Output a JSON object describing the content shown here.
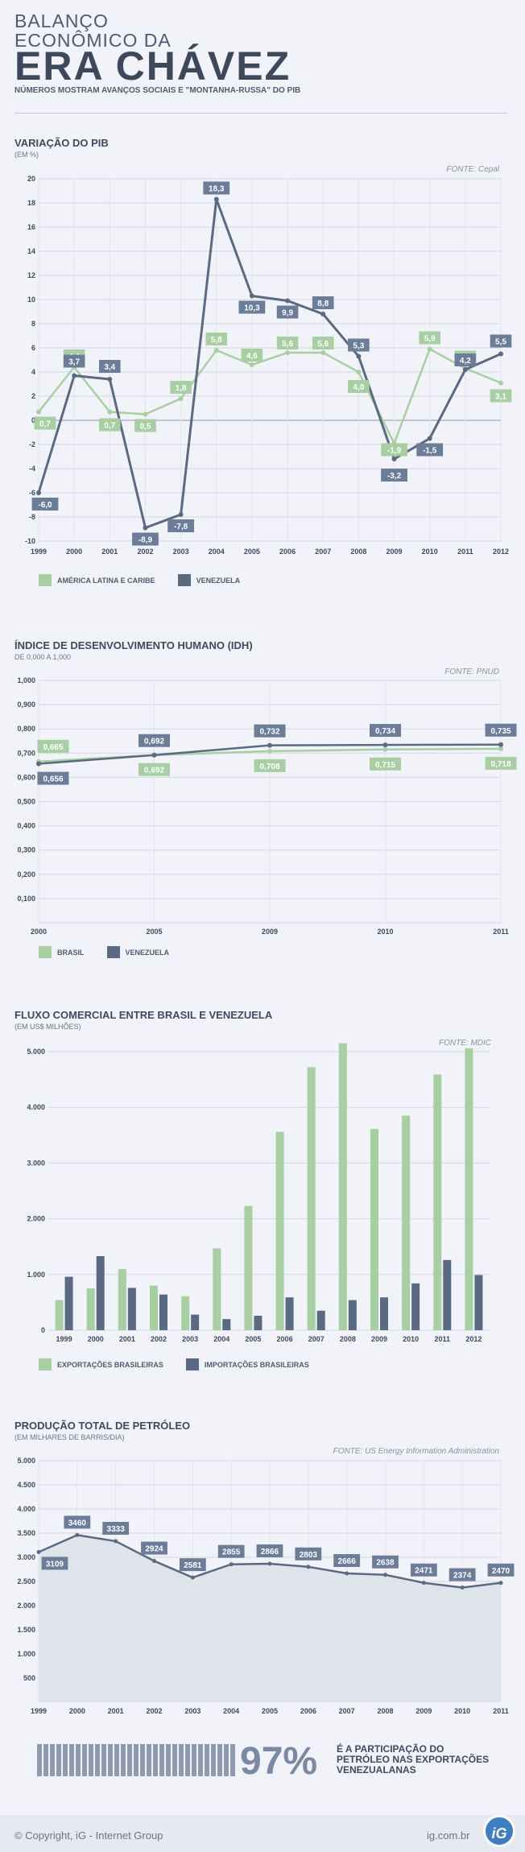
{
  "header": {
    "line1a": "BALANÇO",
    "line1b": "ECONÔMICO DA",
    "line2": "ERA CHÁVEZ",
    "subtitle": "NÚMEROS MOSTRAM AVANÇOS SOCIAIS E \"MONTANHA-RUSSA\" DO PIB"
  },
  "pib": {
    "title": "VARIAÇÃO DO PIB",
    "unit": "(EM %)",
    "source": "FONTE: Cepal"
  },
  "idh": {
    "title": "ÍNDICE DE DESENVOLVIMENTO HUMANO (IDH)",
    "unit": "DE 0,000 A 1,000",
    "source": "FONTE: PNUD"
  },
  "trade": {
    "title": "FLUXO COMERCIAL ENTRE BRASIL E VENEZUELA",
    "unit": "(EM US$ MILHÕES)",
    "source": "FONTE: MDIC"
  },
  "oil": {
    "title": "PRODUÇÃO TOTAL DE PETRÓLEO",
    "unit": "(EM MILHARES DE BARRIS/DIA)",
    "source": "FONTE: US Energy Information Administration"
  },
  "bottom": {
    "pct": "97%",
    "text1": "É A PARTICIPAÇÃO DO",
    "text2": "PETRÓLEO NAS EXPORTAÇÕES",
    "text3": "VENEZUALANAS"
  },
  "footer": {
    "copyright": "© Copyright, iG - Internet Group",
    "site": "ig.com.br",
    "logo": "iG"
  },
  "colors": {
    "green": "#a8cfa1",
    "dark": "#5b6a83",
    "label_dark": "#6c7d99"
  },
  "chart_data": [
    {
      "type": "line",
      "x": [
        "1999",
        "2000",
        "2001",
        "2002",
        "2003",
        "2004",
        "2005",
        "2006",
        "2007",
        "2008",
        "2009",
        "2010",
        "2011",
        "2012"
      ],
      "ylim": [
        -10,
        20
      ],
      "yticks": [
        "-10",
        "-8",
        "-6",
        "-4",
        "-2",
        "0",
        "2",
        "4",
        "6",
        "8",
        "10",
        "12",
        "14",
        "16",
        "18",
        "20"
      ],
      "series": [
        {
          "name": "AMÉRICA LATINA E CARIBE",
          "values": [
            0.7,
            4.4,
            0.7,
            0.5,
            1.8,
            5.8,
            4.6,
            5.6,
            5.6,
            4.0,
            -1.9,
            5.9,
            4.3,
            3.1
          ],
          "labels": [
            "0,7",
            "4,4",
            "0,7",
            "0,5",
            "1,8",
            "5,8",
            "4,6",
            "5,6",
            "5,6",
            "4,0",
            "-1,9",
            "5,9",
            "4,3",
            "3,1"
          ]
        },
        {
          "name": "VENEZUELA",
          "values": [
            -6.0,
            3.7,
            3.4,
            -8.9,
            -7.8,
            18.3,
            10.3,
            9.9,
            8.8,
            5.3,
            -3.2,
            -1.5,
            4.2,
            5.5
          ],
          "labels": [
            "-6,0",
            "3,7",
            "3,4",
            "-8,9",
            "-7,8",
            "18,3",
            "10,3",
            "9,9",
            "8,8",
            "5,3",
            "-3,2",
            "-1,5",
            "4,2",
            "5,5"
          ]
        }
      ]
    },
    {
      "type": "line",
      "x": [
        "2000",
        "2005",
        "2009",
        "2010",
        "2011"
      ],
      "ylim": [
        0,
        1
      ],
      "yticks": [
        "0",
        "0,100",
        "0,200",
        "0,300",
        "0,400",
        "0,500",
        "0,600",
        "0,700",
        "0,800",
        "0,900",
        "1,000"
      ],
      "series": [
        {
          "name": "BRASIL",
          "values": [
            0.665,
            0.692,
            0.708,
            0.715,
            0.718
          ],
          "labels": [
            "0,665",
            "0,692",
            "0,708",
            "0,715",
            "0,718"
          ]
        },
        {
          "name": "VENEZUELA",
          "values": [
            0.656,
            0.692,
            0.732,
            0.734,
            0.735
          ],
          "labels": [
            "0,656",
            "0,692",
            "0,732",
            "0,734",
            "0,735"
          ]
        }
      ]
    },
    {
      "type": "bar",
      "categories": [
        "1999",
        "2000",
        "2001",
        "2002",
        "2003",
        "2004",
        "2005",
        "2006",
        "2007",
        "2008",
        "2009",
        "2010",
        "2011",
        "2012"
      ],
      "ylim": [
        0,
        5000
      ],
      "yticks": [
        "0",
        "1.000",
        "2.000",
        "3.000",
        "4.000",
        "5.000"
      ],
      "series": [
        {
          "name": "EXPORTAÇÕES BRASILEIRAS",
          "values": [
            540,
            750,
            1100,
            800,
            610,
            1470,
            2230,
            3560,
            4720,
            5150,
            3610,
            3850,
            4590,
            5060
          ]
        },
        {
          "name": "IMPORTAÇÕES BRASILEIRAS",
          "values": [
            960,
            1330,
            760,
            640,
            280,
            200,
            260,
            590,
            350,
            540,
            590,
            840,
            1260,
            990
          ]
        }
      ]
    },
    {
      "type": "area",
      "x": [
        "1999",
        "2000",
        "2001",
        "2002",
        "2003",
        "2004",
        "2005",
        "2006",
        "2007",
        "2008",
        "2009",
        "2010",
        "2011"
      ],
      "ylim": [
        0,
        5000
      ],
      "yticks": [
        "500",
        "1.000",
        "1.500",
        "2.000",
        "2.500",
        "3.000",
        "3.500",
        "4.000",
        "4.500",
        "5.000"
      ],
      "series": [
        {
          "values": [
            3109,
            3460,
            3333,
            2924,
            2581,
            2855,
            2866,
            2803,
            2666,
            2638,
            2471,
            2374,
            2470
          ],
          "labels": [
            "3109",
            "3460",
            "3333",
            "2924",
            "2581",
            "2855",
            "2866",
            "2803",
            "2666",
            "2638",
            "2471",
            "2374",
            "2470"
          ]
        }
      ]
    }
  ]
}
